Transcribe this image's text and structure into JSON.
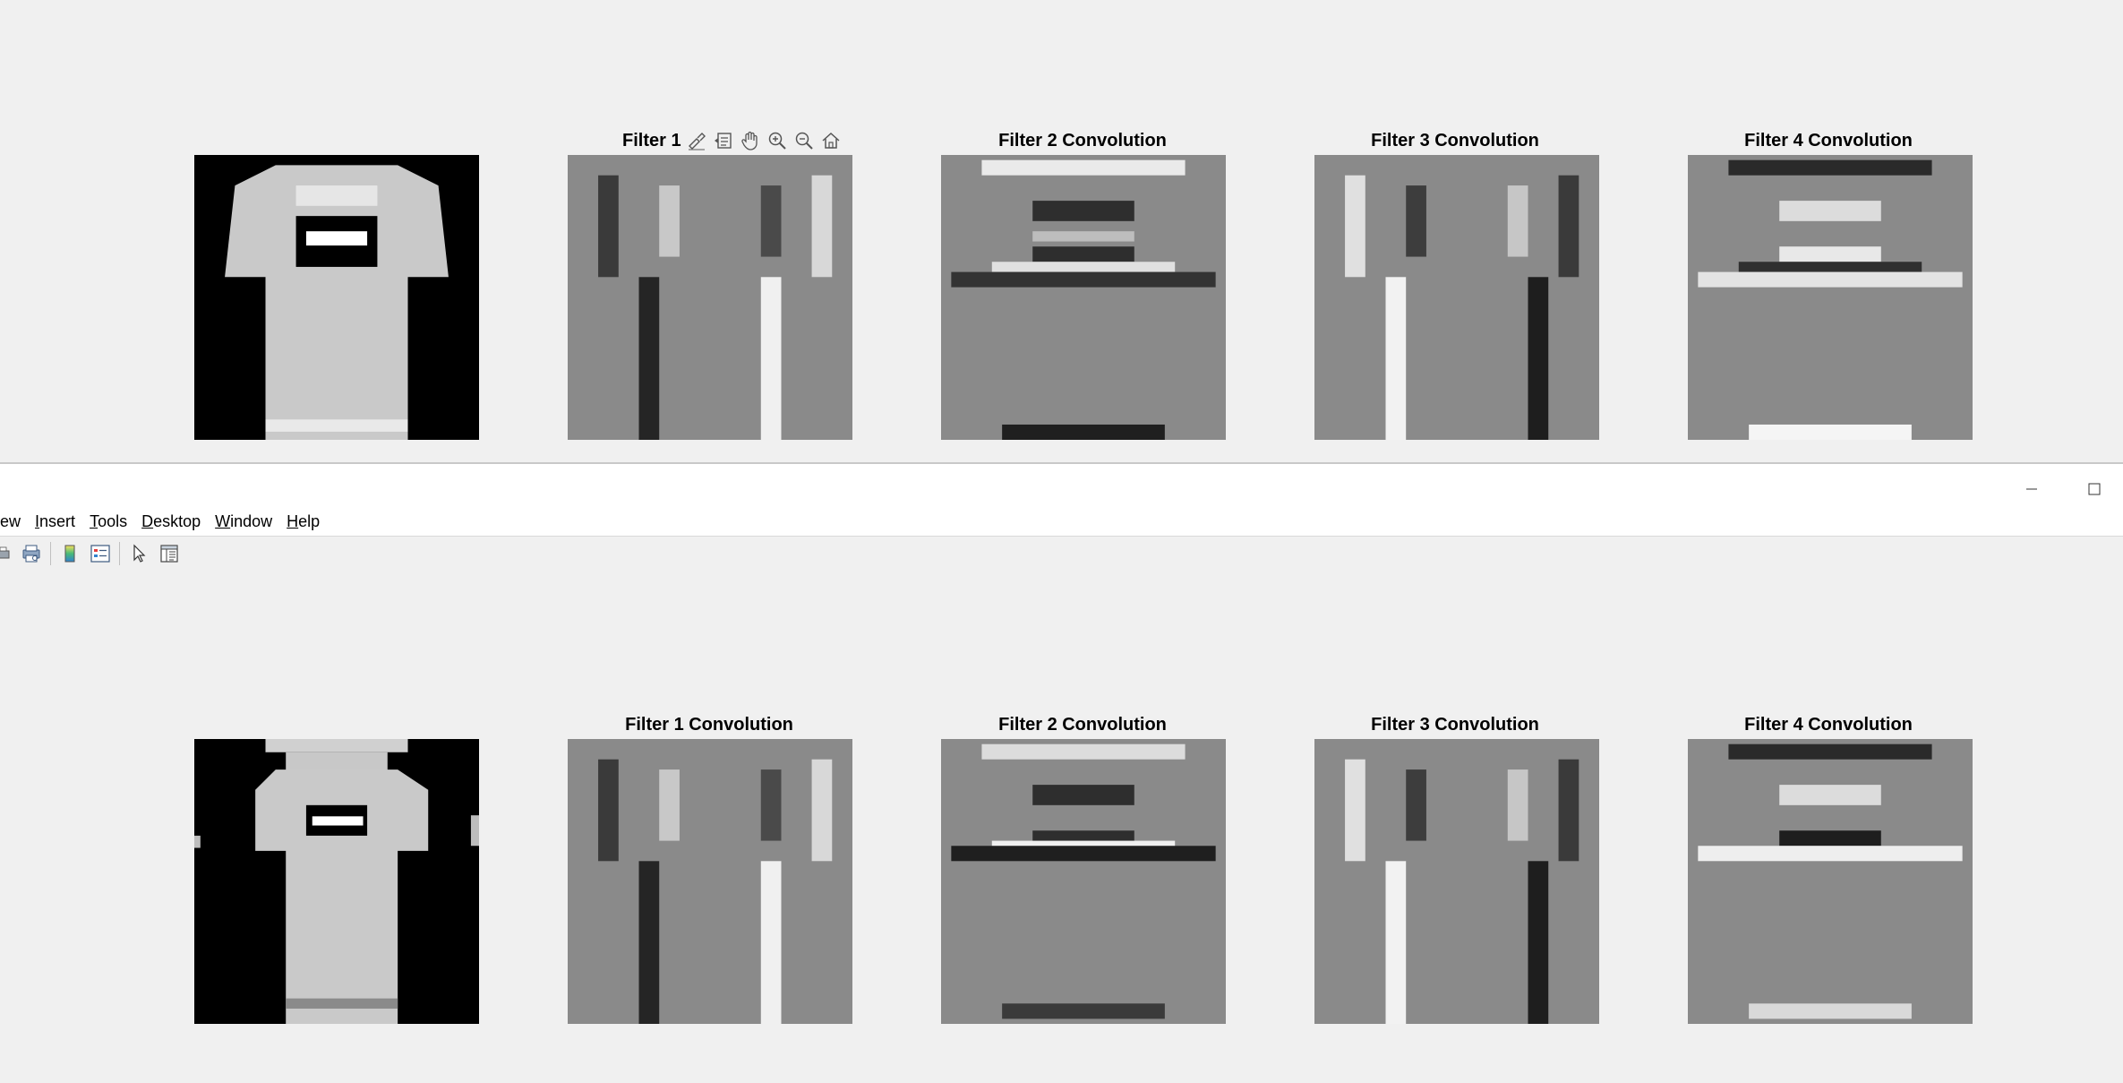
{
  "top_figure": {
    "titles": [
      "",
      "Filter 1",
      "Filter 2 Convolution",
      "Filter 3 Convolution",
      "Filter 4 Convolution"
    ]
  },
  "bottom_figure": {
    "titles": [
      "",
      "Filter 1 Convolution",
      "Filter 2 Convolution",
      "Filter 3 Convolution",
      "Filter 4 Convolution"
    ]
  },
  "axes_toolbar": {
    "icons": [
      "brush-icon",
      "datatip-icon",
      "pan-icon",
      "zoom-in-icon",
      "zoom-out-icon",
      "home-icon"
    ]
  },
  "window": {
    "menu": [
      {
        "pre": "",
        "key": "",
        "post": "ew"
      },
      {
        "pre": "",
        "key": "I",
        "post": "nsert"
      },
      {
        "pre": "",
        "key": "T",
        "post": "ools"
      },
      {
        "pre": "",
        "key": "D",
        "post": "esktop"
      },
      {
        "pre": "",
        "key": "W",
        "post": "indow"
      },
      {
        "pre": "",
        "key": "H",
        "post": "elp"
      }
    ],
    "controls": [
      "minimize-icon",
      "maximize-icon"
    ],
    "toolbar_icons": [
      "print-icon",
      "print-preview-icon",
      "colorbar-icon",
      "legend-icon",
      "select-arrow-icon",
      "property-inspector-icon"
    ]
  }
}
